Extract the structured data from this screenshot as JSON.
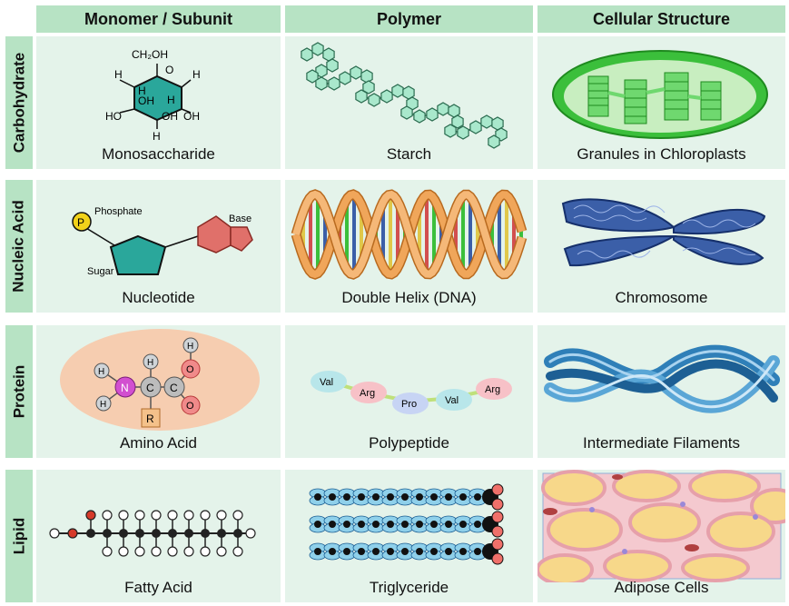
{
  "headers": {
    "monomer": "Monomer / Subunit",
    "polymer": "Polymer",
    "structure": "Cellular Structure"
  },
  "rows": {
    "carbohydrate": "Carbohydrate",
    "nucleic_acid": "Nucleic Acid",
    "protein": "Protein",
    "lipid": "Lipid"
  },
  "captions": {
    "monosaccharide": "Monosaccharide",
    "starch": "Starch",
    "granules": "Granules in Chloroplasts",
    "nucleotide": "Nucleotide",
    "dna": "Double Helix (DNA)",
    "chromosome": "Chromosome",
    "amino_acid": "Amino Acid",
    "polypeptide": "Polypeptide",
    "filaments": "Intermediate Filaments",
    "fatty_acid": "Fatty Acid",
    "triglyceride": "Triglyceride",
    "adipose": "Adipose Cells"
  },
  "labels": {
    "ch2oh": "CH₂OH",
    "o": "O",
    "h": "H",
    "oh": "OH",
    "ho": "HO",
    "phosphate": "Phosphate",
    "p": "P",
    "base": "Base",
    "sugar": "Sugar",
    "n": "N",
    "c": "C",
    "r": "R",
    "val": "Val",
    "arg": "Arg",
    "pro": "Pro"
  },
  "colors": {
    "header_bg": "#b7e3c4",
    "cell_bg": "#e4f3ea",
    "teal": "#2aa79b",
    "green": "#3bbf3b",
    "orange": "#f0a65a",
    "blue": "#3b5fa8"
  }
}
